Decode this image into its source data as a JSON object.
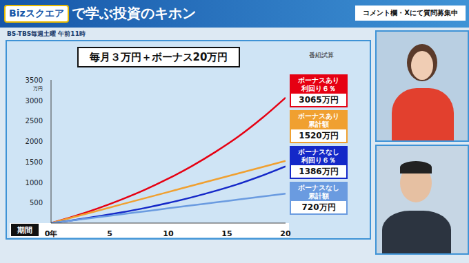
{
  "header": {
    "logo": "Bizスクエア",
    "title": "で学ぶ投資のキホン",
    "notice": "コメント欄・Xにて質問募集中",
    "schedule": "BS-TBS毎週土曜 午前11時"
  },
  "chart_data": {
    "type": "line",
    "title": "毎月３万円＋ボーナス20万円",
    "subtitle": "番組試算",
    "x_label": "期間",
    "y_label": "万円",
    "x": [
      0,
      2,
      4,
      6,
      8,
      10,
      12,
      14,
      16,
      18,
      20
    ],
    "xlim": [
      0,
      20
    ],
    "xticks": [
      {
        "value": 0,
        "label": "0年"
      },
      5,
      10,
      15,
      20
    ],
    "ylim": [
      0,
      3500
    ],
    "yticks": [
      500,
      1000,
      1500,
      2000,
      2500,
      3000,
      3500
    ],
    "grid": false,
    "marker": "none",
    "line_style": "solid",
    "series": [
      {
        "name": "ボーナスあり 利回り６％",
        "color": "#e60012",
        "values": [
          0,
          168,
          360,
          575,
          814,
          1086,
          1391,
          1735,
          2119,
          2565,
          3065
        ],
        "value_labels": [
          null,
          null,
          null,
          null,
          null,
          null,
          null,
          null,
          null,
          null,
          "3065万円"
        ]
      },
      {
        "name": "ボーナスあり 累計額",
        "color": "#f0a030",
        "values": [
          0,
          152,
          304,
          456,
          608,
          760,
          912,
          1064,
          1216,
          1368,
          1520
        ],
        "value_labels": [
          null,
          null,
          null,
          null,
          null,
          null,
          null,
          null,
          null,
          null,
          "1520万円"
        ]
      },
      {
        "name": "ボーナスなし 利回り６％",
        "color": "#1428c8",
        "values": [
          0,
          76,
          163,
          260,
          368,
          491,
          629,
          785,
          958,
          1160,
          1386
        ],
        "value_labels": [
          null,
          null,
          null,
          null,
          null,
          null,
          null,
          null,
          null,
          null,
          "1386万円"
        ]
      },
      {
        "name": "ボーナスなし 累計額",
        "color": "#6a9be0",
        "values": [
          0,
          72,
          144,
          216,
          288,
          360,
          432,
          504,
          576,
          648,
          720
        ],
        "value_labels": [
          null,
          null,
          null,
          null,
          null,
          null,
          null,
          null,
          null,
          null,
          "720万円"
        ]
      }
    ]
  }
}
